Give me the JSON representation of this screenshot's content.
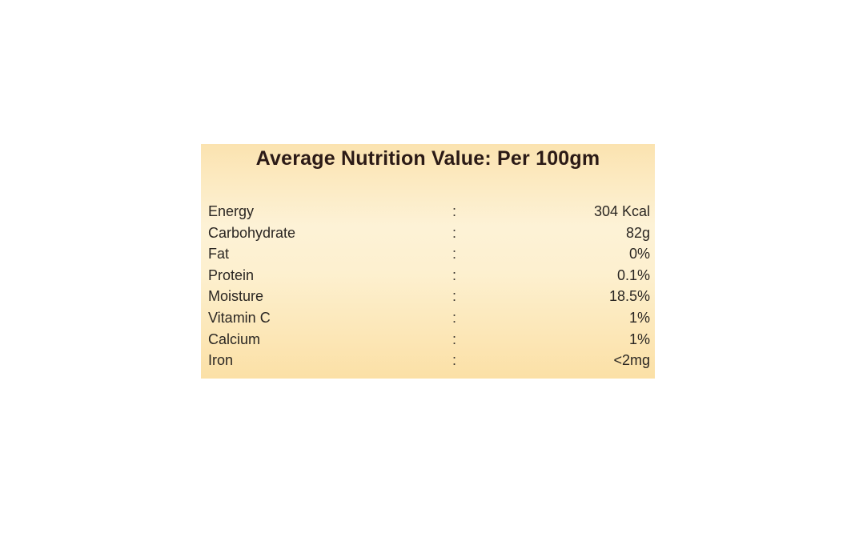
{
  "label": {
    "title": "Average Nutrition Value: Per 100gm",
    "separator": ":",
    "rows": [
      {
        "name": "Energy",
        "value": "304 Kcal"
      },
      {
        "name": "Carbohydrate",
        "value": "82g"
      },
      {
        "name": "Fat",
        "value": "0%"
      },
      {
        "name": "Protein",
        "value": "0.1%"
      },
      {
        "name": "Moisture",
        "value": "18.5%"
      },
      {
        "name": "Vitamin C",
        "value": "1%"
      },
      {
        "name": "Calcium",
        "value": "1%"
      },
      {
        "name": "Iron",
        "value": "<2mg"
      }
    ]
  }
}
